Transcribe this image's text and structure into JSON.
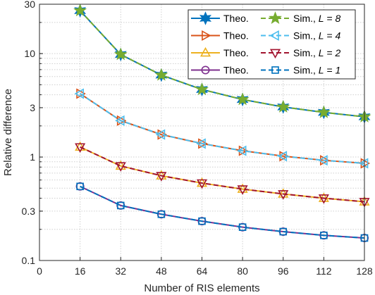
{
  "chart_data": {
    "type": "line",
    "title": "",
    "xlabel": "Number of RIS elements",
    "ylabel": "Relative difference",
    "x": [
      16,
      32,
      48,
      64,
      80,
      96,
      112,
      128
    ],
    "xlim": [
      0,
      128
    ],
    "ylim": [
      0.1,
      30
    ],
    "yscale": "log",
    "xticks": [
      0,
      16,
      32,
      48,
      64,
      80,
      96,
      112,
      128
    ],
    "yticks": [
      0.1,
      0.3,
      1,
      3,
      10,
      30
    ],
    "ytick_labels": [
      "0.1",
      "0.3",
      "1",
      "3",
      "10",
      "30"
    ],
    "grid": true,
    "legend_position": "top-right",
    "legend_labels": {
      "theo": "Theo.",
      "sim_prefix": "Sim.,",
      "L": "L",
      "eq": "="
    },
    "series": [
      {
        "kind": "theo",
        "L": "8",
        "color": "#0072BD",
        "marker": "hexagram",
        "values": [
          26.0,
          9.8,
          6.2,
          4.5,
          3.6,
          3.05,
          2.7,
          2.45
        ]
      },
      {
        "kind": "theo",
        "L": "4",
        "color": "#D95319",
        "marker": "triangle-right",
        "values": [
          4.1,
          2.25,
          1.65,
          1.35,
          1.15,
          1.02,
          0.93,
          0.87
        ]
      },
      {
        "kind": "theo",
        "L": "2",
        "color": "#EDB120",
        "marker": "triangle-up",
        "values": [
          1.25,
          0.82,
          0.66,
          0.56,
          0.49,
          0.44,
          0.4,
          0.37
        ]
      },
      {
        "kind": "theo",
        "L": "1",
        "color": "#7E2F8E",
        "marker": "circle",
        "values": [
          0.52,
          0.34,
          0.28,
          0.24,
          0.21,
          0.19,
          0.175,
          0.165
        ]
      },
      {
        "kind": "sim",
        "L": "8",
        "color": "#77AC30",
        "marker": "pentagram",
        "dashed": true,
        "values": [
          26.0,
          9.8,
          6.2,
          4.5,
          3.6,
          3.05,
          2.7,
          2.45
        ]
      },
      {
        "kind": "sim",
        "L": "4",
        "color": "#4DBEEE",
        "marker": "triangle-left",
        "dashed": true,
        "values": [
          4.1,
          2.25,
          1.65,
          1.35,
          1.15,
          1.02,
          0.93,
          0.87
        ]
      },
      {
        "kind": "sim",
        "L": "2",
        "color": "#A2142F",
        "marker": "triangle-down",
        "dashed": true,
        "values": [
          1.25,
          0.82,
          0.66,
          0.56,
          0.49,
          0.44,
          0.4,
          0.37
        ]
      },
      {
        "kind": "sim",
        "L": "1",
        "color": "#0072BD",
        "marker": "square",
        "dashed": true,
        "values": [
          0.52,
          0.34,
          0.28,
          0.24,
          0.21,
          0.19,
          0.175,
          0.165
        ]
      }
    ]
  }
}
